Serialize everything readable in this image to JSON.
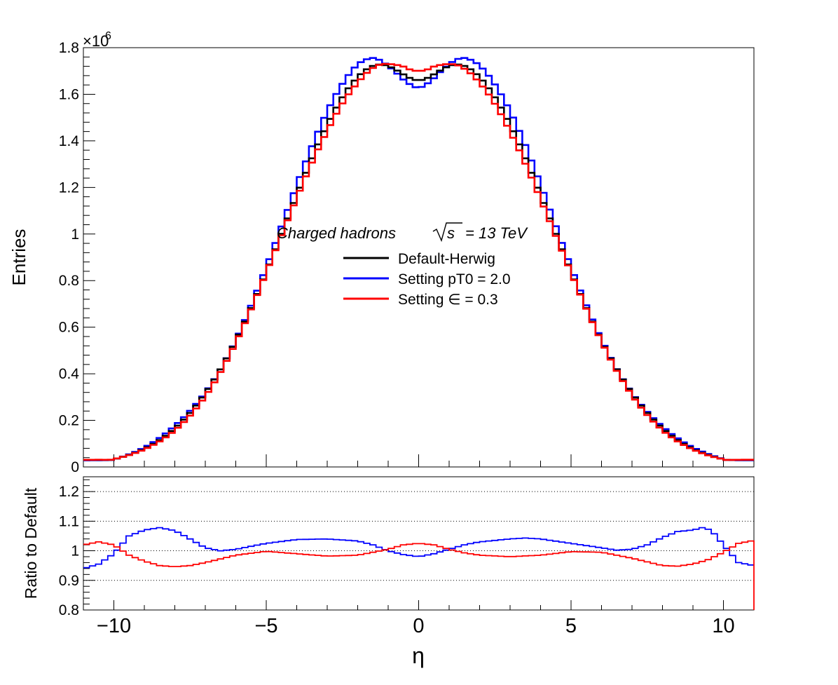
{
  "chart_data": [
    {
      "type": "line",
      "style": "step-histogram",
      "title": "Charged hadrons",
      "annotation": {
        "label": "Charged hadrons",
        "energy_lhs": "s",
        "energy_rhs": "= 13 TeV"
      },
      "xlabel": "η",
      "ylabel": "Entries",
      "xlim": [
        -11,
        11
      ],
      "ylim": [
        0,
        1.8
      ],
      "y_multiplier": "×10",
      "y_multiplier_exp": "6",
      "bin_width": 0.2,
      "y_ticks": [
        {
          "v": 0,
          "label": "0"
        },
        {
          "v": 0.2,
          "label": "0.2"
        },
        {
          "v": 0.4,
          "label": "0.4"
        },
        {
          "v": 0.6,
          "label": "0.6"
        },
        {
          "v": 0.8,
          "label": "0.8"
        },
        {
          "v": 1.0,
          "label": "1"
        },
        {
          "v": 1.2,
          "label": "1.2"
        },
        {
          "v": 1.4,
          "label": "1.4"
        },
        {
          "v": 1.6,
          "label": "1.6"
        },
        {
          "v": 1.8,
          "label": "1.8"
        }
      ],
      "legend_position": "center",
      "series": [
        {
          "name": "Default-Herwig",
          "color": "#000000",
          "peaks": [
            1.72,
            1.72
          ],
          "dip_at_zero": 1.655
        },
        {
          "name": "Setting pT0 = 2.0",
          "color": "#0000ff",
          "peaks": [
            1.75,
            1.76
          ],
          "dip_at_zero": 1.625
        },
        {
          "name": "Setting ∈ = 0.3",
          "color": "#ff0000",
          "peaks": [
            1.72,
            1.72
          ],
          "dip_at_zero": 1.705
        }
      ]
    },
    {
      "type": "line",
      "style": "step-histogram",
      "ylabel": "Ratio to Default",
      "xlabel": "η",
      "xlim": [
        -11,
        11
      ],
      "ylim": [
        0.8,
        1.25
      ],
      "x_ticks": [
        {
          "v": -10,
          "label": "−10"
        },
        {
          "v": -5,
          "label": "−5"
        },
        {
          "v": 0,
          "label": "0"
        },
        {
          "v": 5,
          "label": "5"
        },
        {
          "v": 10,
          "label": "10"
        }
      ],
      "y_ticks": [
        {
          "v": 0.8,
          "label": "0.8"
        },
        {
          "v": 0.9,
          "label": "0.9"
        },
        {
          "v": 1.0,
          "label": "1"
        },
        {
          "v": 1.1,
          "label": "1.1"
        },
        {
          "v": 1.2,
          "label": "1.2"
        }
      ],
      "grid_y": [
        0.9,
        1.0,
        1.1,
        1.2
      ],
      "series": [
        {
          "name": "Setting pT0 = 2.0",
          "color": "#0000ff",
          "points": [
            [
              -11,
              0.94
            ],
            [
              -10.5,
              0.955
            ],
            [
              -10,
              0.99
            ],
            [
              -9.5,
              1.05
            ],
            [
              -9,
              1.07
            ],
            [
              -8.5,
              1.078
            ],
            [
              -8,
              1.068
            ],
            [
              -7.5,
              1.04
            ],
            [
              -7,
              1.01
            ],
            [
              -6.5,
              1.0
            ],
            [
              -6,
              1.005
            ],
            [
              -5,
              1.025
            ],
            [
              -4,
              1.038
            ],
            [
              -3,
              1.04
            ],
            [
              -2,
              1.033
            ],
            [
              -1.5,
              1.02
            ],
            [
              -1,
              1.0
            ],
            [
              -0.5,
              0.987
            ],
            [
              0,
              0.98
            ],
            [
              0.5,
              0.99
            ],
            [
              1,
              1.005
            ],
            [
              1.5,
              1.02
            ],
            [
              2,
              1.03
            ],
            [
              3,
              1.04
            ],
            [
              3.5,
              1.043
            ],
            [
              4,
              1.04
            ],
            [
              5,
              1.025
            ],
            [
              6,
              1.01
            ],
            [
              6.5,
              1.002
            ],
            [
              7,
              1.005
            ],
            [
              7.5,
              1.02
            ],
            [
              8,
              1.045
            ],
            [
              8.5,
              1.065
            ],
            [
              9,
              1.07
            ],
            [
              9.3,
              1.078
            ],
            [
              9.6,
              1.07
            ],
            [
              10,
              1.02
            ],
            [
              10.5,
              0.96
            ],
            [
              11,
              0.95
            ]
          ]
        },
        {
          "name": "Setting ∈ = 0.3",
          "color": "#ff0000",
          "points": [
            [
              -11,
              1.02
            ],
            [
              -10.5,
              1.03
            ],
            [
              -10,
              1.02
            ],
            [
              -9.5,
              0.985
            ],
            [
              -9,
              0.965
            ],
            [
              -8.5,
              0.95
            ],
            [
              -8,
              0.946
            ],
            [
              -7.5,
              0.95
            ],
            [
              -7,
              0.96
            ],
            [
              -6,
              0.985
            ],
            [
              -5,
              0.998
            ],
            [
              -4,
              0.99
            ],
            [
              -3,
              0.982
            ],
            [
              -2,
              0.985
            ],
            [
              -1,
              1.005
            ],
            [
              -0.5,
              1.02
            ],
            [
              0,
              1.025
            ],
            [
              0.5,
              1.02
            ],
            [
              1,
              1.005
            ],
            [
              1.5,
              0.993
            ],
            [
              2,
              0.985
            ],
            [
              3,
              0.98
            ],
            [
              4,
              0.985
            ],
            [
              5,
              0.997
            ],
            [
              6,
              0.995
            ],
            [
              7,
              0.975
            ],
            [
              8,
              0.95
            ],
            [
              8.5,
              0.948
            ],
            [
              9,
              0.955
            ],
            [
              9.5,
              0.97
            ],
            [
              10,
              0.995
            ],
            [
              10.5,
              1.025
            ],
            [
              11,
              1.035
            ]
          ]
        }
      ]
    }
  ]
}
